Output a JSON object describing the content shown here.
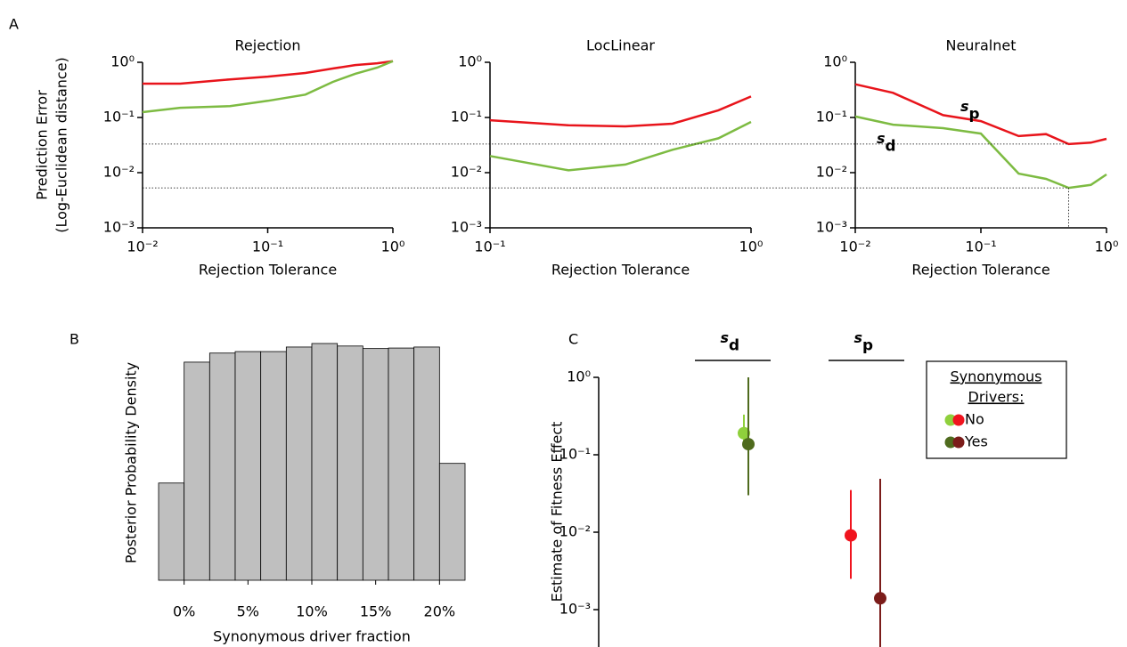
{
  "chart_data": [
    {
      "type": "line",
      "panel": "A",
      "title": "Rejection",
      "xlabel": "Rejection Tolerance",
      "ylabel": [
        "Prediction Error",
        "(Log-Euclidean distance)"
      ],
      "xscale": "log",
      "yscale": "log",
      "xlim": [
        0.01,
        1
      ],
      "ylim": [
        0.001,
        1
      ],
      "xticks": [
        {
          "value": 0.01,
          "label": "10⁻²"
        },
        {
          "value": 0.1,
          "label": "10⁻¹"
        },
        {
          "value": 1,
          "label": "10⁰"
        }
      ],
      "yticks": [
        {
          "value": 0.001,
          "label": "10⁻³"
        },
        {
          "value": 0.01,
          "label": "10⁻²"
        },
        {
          "value": 0.1,
          "label": "10⁻¹"
        },
        {
          "value": 1,
          "label": "10⁰"
        }
      ],
      "x": [
        0.01,
        0.02,
        0.05,
        0.1,
        0.2,
        0.33,
        0.5,
        0.75,
        1
      ],
      "series": [
        {
          "color": "#e8141b",
          "values": [
            0.41,
            0.41,
            0.49,
            0.55,
            0.64,
            0.77,
            0.89,
            0.96,
            1.05
          ]
        },
        {
          "color": "#7dbb42",
          "values": [
            0.125,
            0.15,
            0.16,
            0.2,
            0.26,
            0.44,
            0.62,
            0.8,
            1.05
          ]
        }
      ]
    },
    {
      "type": "line",
      "title": "LocLinear",
      "xlabel": "Rejection Tolerance",
      "xscale": "log",
      "yscale": "log",
      "xlim": [
        0.1,
        1
      ],
      "ylim": [
        0.001,
        1
      ],
      "xticks": [
        {
          "value": 0.1,
          "label": "10⁻¹"
        },
        {
          "value": 1,
          "label": "10⁰"
        }
      ],
      "yticks": [
        {
          "value": 0.001,
          "label": "10⁻³"
        },
        {
          "value": 0.01,
          "label": "10⁻²"
        },
        {
          "value": 0.1,
          "label": "10⁻¹"
        },
        {
          "value": 1,
          "label": "10⁰"
        }
      ],
      "x": [
        0.1,
        0.2,
        0.33,
        0.5,
        0.75,
        1
      ],
      "series": [
        {
          "color": "#e8141b",
          "values": [
            0.089,
            0.072,
            0.069,
            0.077,
            0.135,
            0.24
          ]
        },
        {
          "color": "#7dbb42",
          "values": [
            0.02,
            0.011,
            0.014,
            0.026,
            0.042,
            0.083
          ]
        }
      ]
    },
    {
      "type": "line",
      "title": "Neuralnet",
      "xlabel": "Rejection Tolerance",
      "xscale": "log",
      "yscale": "log",
      "xlim": [
        0.01,
        1
      ],
      "ylim": [
        0.001,
        1
      ],
      "xticks": [
        {
          "value": 0.01,
          "label": "10⁻²"
        },
        {
          "value": 0.1,
          "label": "10⁻¹"
        },
        {
          "value": 1,
          "label": "10⁰"
        }
      ],
      "yticks": [
        {
          "value": 0.001,
          "label": "10⁻³"
        },
        {
          "value": 0.01,
          "label": "10⁻²"
        },
        {
          "value": 0.1,
          "label": "10⁻¹"
        },
        {
          "value": 1,
          "label": "10⁰"
        }
      ],
      "x": [
        0.01,
        0.02,
        0.05,
        0.1,
        0.2,
        0.33,
        0.5,
        0.75,
        1
      ],
      "series": [
        {
          "color": "#e8141b",
          "values": [
            0.4,
            0.28,
            0.11,
            0.086,
            0.046,
            0.05,
            0.033,
            0.035,
            0.041
          ]
        },
        {
          "color": "#7dbb42",
          "values": [
            0.104,
            0.074,
            0.064,
            0.051,
            0.0096,
            0.0077,
            0.0053,
            0.006,
            0.0093
          ]
        }
      ],
      "annotations": [
        {
          "symbol": "s",
          "subscript": "p",
          "color": "#e8141b"
        },
        {
          "symbol": "s",
          "subscript": "d",
          "color": "#7dbb42"
        }
      ],
      "reference_lines": {
        "y": [
          0.033,
          0.0053
        ],
        "x": 0.5
      }
    },
    {
      "type": "histogram",
      "panel": "B",
      "xlabel": "Synonymous driver fraction",
      "ylabel": "Posterior Probability Density",
      "color": "#bfbfbf",
      "xlim": [
        -2,
        22
      ],
      "ylim": [
        0,
        0.05
      ],
      "bins": [
        -2,
        0,
        2,
        4,
        6,
        8,
        10,
        12,
        14,
        16,
        18,
        20,
        22
      ],
      "values": [
        0.0193,
        0.0433,
        0.0451,
        0.0454,
        0.0454,
        0.0463,
        0.047,
        0.0465,
        0.046,
        0.0461,
        0.0463,
        0.0232
      ],
      "xticks": [
        {
          "value": 0,
          "label": "0%"
        },
        {
          "value": 5,
          "label": "5%"
        },
        {
          "value": 10,
          "label": "10%"
        },
        {
          "value": 15,
          "label": "15%"
        },
        {
          "value": 20,
          "label": "20%"
        }
      ]
    },
    {
      "type": "errorbar",
      "panel": "C",
      "ylabel": "Estimate of Fitness Effect",
      "yscale": "log",
      "ylim": [
        0.00033,
        1
      ],
      "yticks": [
        {
          "value": 0.001,
          "label": "10⁻³"
        },
        {
          "value": 0.01,
          "label": "10⁻²"
        },
        {
          "value": 0.1,
          "label": "10⁻¹"
        },
        {
          "value": 1,
          "label": "10⁰"
        }
      ],
      "groups": [
        {
          "symbol": "s",
          "subscript": "d",
          "color": "#7dbb42"
        },
        {
          "symbol": "s",
          "subscript": "p",
          "color": "#e8141b"
        }
      ],
      "legend_title": [
        "Synonymous",
        "Drivers:"
      ],
      "series": [
        {
          "name": "No",
          "colors": [
            "#8fd03c",
            "#f0141e"
          ],
          "values": [
            0.19,
            0.0091
          ],
          "lower": [
            0.137,
            0.0025
          ],
          "upper": [
            0.33,
            0.035
          ]
        },
        {
          "name": "Yes",
          "colors": [
            "#4f6b1e",
            "#7b1c1a"
          ],
          "values": [
            0.137,
            0.0014
          ],
          "lower": [
            0.03,
            0.0003
          ],
          "upper": [
            1.0,
            0.049
          ]
        }
      ]
    }
  ]
}
